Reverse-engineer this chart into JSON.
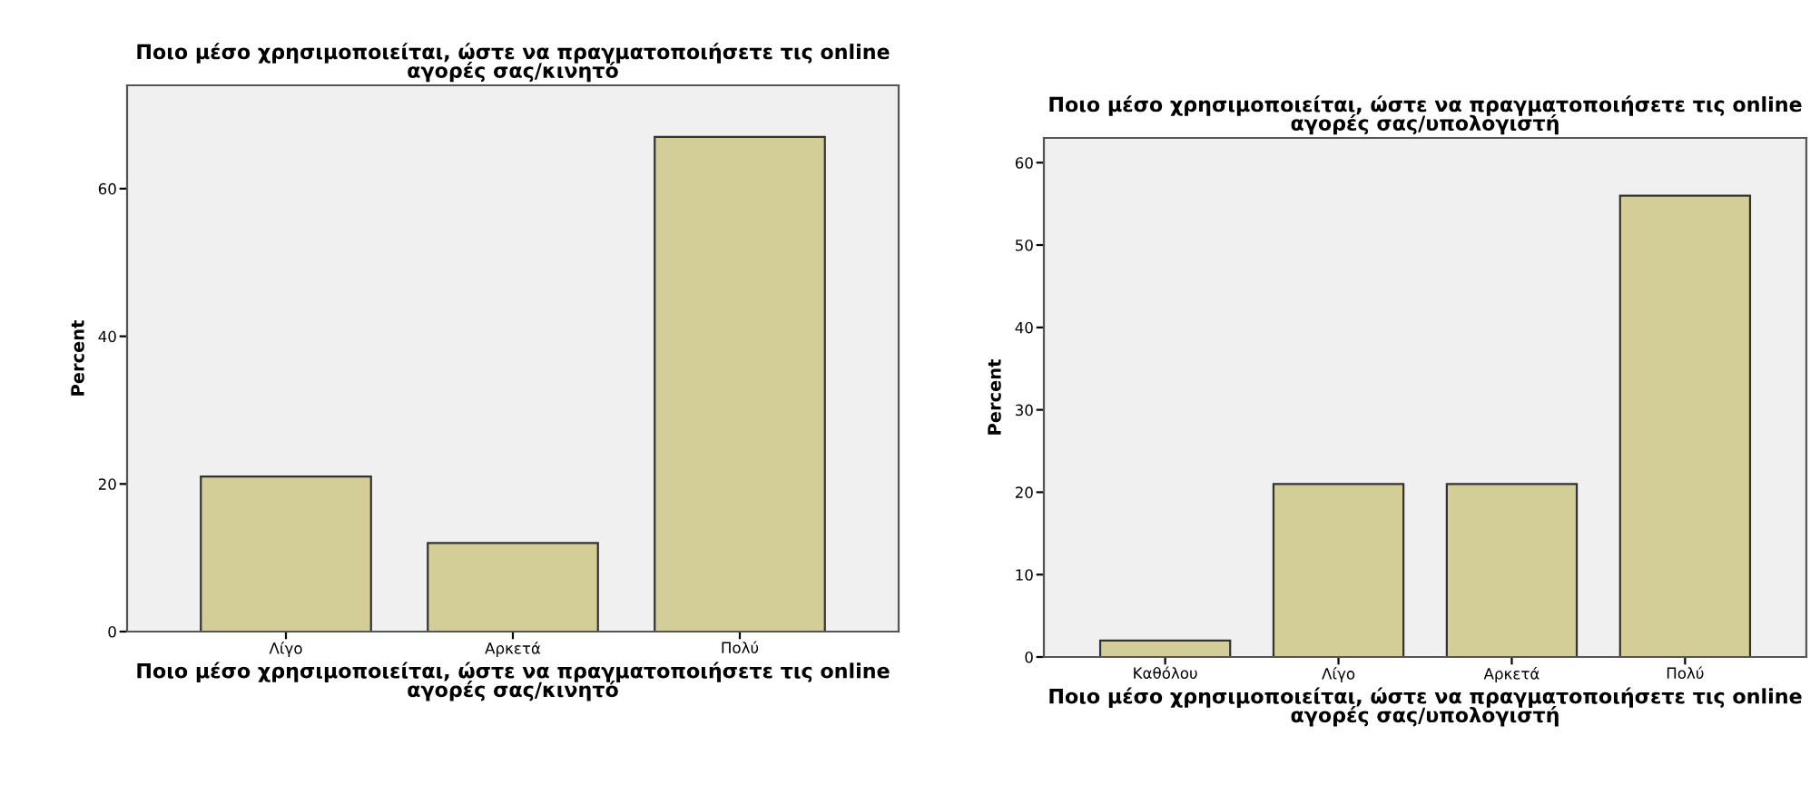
{
  "chart_data": [
    {
      "type": "bar",
      "title": "Ποιο μέσο χρησιμοποιείται, ώστε να πραγματοποιήσετε τις online\nαγορές σας/κινητό",
      "xlabel": "Ποιο μέσο χρησιμοποιείται, ώστε να πραγματοποιήσετε τις online\nαγορές σας/κινητό",
      "ylabel": "Percent",
      "categories": [
        "Λίγο",
        "Αρκετά",
        "Πολύ"
      ],
      "values": [
        21,
        12,
        67
      ],
      "color": "#d3ce97",
      "ylim": [
        0,
        74
      ],
      "yticks": [
        0,
        20,
        40,
        60
      ],
      "grid": false
    },
    {
      "type": "bar",
      "title": "Ποιο μέσο χρησιμοποιείται, ώστε να πραγματοποιήσετε τις online\nαγορές σας/υπολογιστή",
      "xlabel": "Ποιο μέσο χρησιμοποιείται, ώστε να πραγματοποιήσετε τις online\nαγορές σας/υπολογιστή",
      "ylabel": "Percent",
      "categories": [
        "Καθόλου",
        "Λίγο",
        "Αρκετά",
        "Πολύ"
      ],
      "values": [
        2,
        21,
        21,
        56
      ],
      "color": "#d3ce97",
      "ylim": [
        0,
        63
      ],
      "yticks": [
        0,
        10,
        20,
        30,
        40,
        50,
        60
      ],
      "grid": false
    }
  ]
}
